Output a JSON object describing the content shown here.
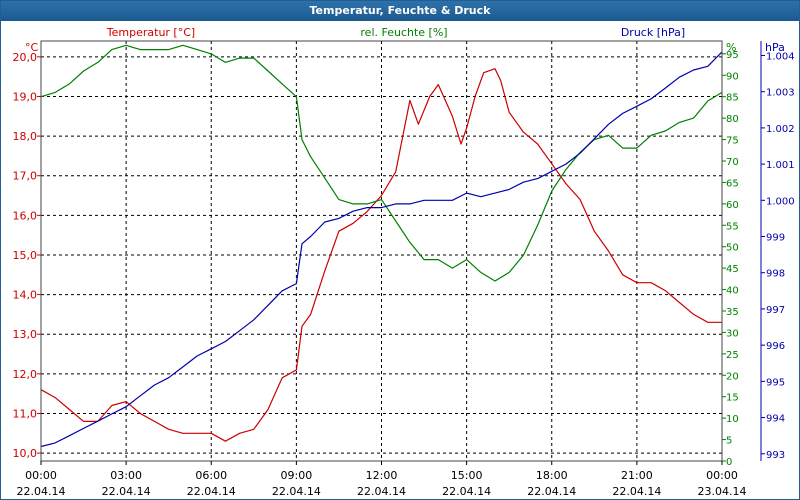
{
  "window": {
    "title": "Temperatur, Feuchte & Druck"
  },
  "colors": {
    "temperature": "#cc0000",
    "humidity": "#008000",
    "pressure": "#0000aa",
    "grid": "#000000",
    "title_bar": "#2066a0"
  },
  "chart_data": {
    "type": "line",
    "title": "Temperatur, Feuchte & Druck",
    "grid": true,
    "x": {
      "tick_times": [
        "00:00",
        "03:00",
        "06:00",
        "09:00",
        "12:00",
        "15:00",
        "18:00",
        "21:00",
        "00:00"
      ],
      "tick_dates": [
        "22.04.14",
        "22.04.14",
        "22.04.14",
        "22.04.14",
        "22.04.14",
        "22.04.14",
        "22.04.14",
        "22.04.14",
        "23.04.14"
      ],
      "range_hours": [
        0,
        24
      ]
    },
    "axes": {
      "left": {
        "label": "Temperatur [°C]",
        "unit": "°C",
        "range": [
          9.8,
          20.4
        ],
        "ticks": [
          "10,0",
          "11,0",
          "12,0",
          "13,0",
          "14,0",
          "15,0",
          "16,0",
          "17,0",
          "18,0",
          "19,0",
          "20,0"
        ]
      },
      "right1": {
        "label": "rel. Feuchte [%]",
        "unit": "%",
        "range": [
          0,
          98
        ],
        "ticks": [
          "0",
          "5",
          "10",
          "15",
          "20",
          "25",
          "30",
          "35",
          "40",
          "45",
          "50",
          "55",
          "60",
          "65",
          "70",
          "75",
          "80",
          "85",
          "90",
          "95"
        ]
      },
      "right2": {
        "label": "Druck [hPa]",
        "unit": "hPa",
        "range": [
          992.8,
          1004.4
        ],
        "ticks": [
          "993",
          "994",
          "995",
          "996",
          "997",
          "998",
          "999",
          "1.000",
          "1.001",
          "1.002",
          "1.003",
          "1.004"
        ]
      }
    },
    "series": [
      {
        "name": "Temperatur [°C]",
        "axis": "left",
        "color": "#cc0000",
        "x": [
          0,
          0.5,
          1,
          1.5,
          2,
          2.5,
          3,
          3.5,
          4,
          4.5,
          5,
          5.5,
          6,
          6.5,
          7,
          7.5,
          8,
          8.5,
          9,
          9.2,
          9.5,
          10,
          10.5,
          11,
          11.5,
          12,
          12.5,
          13,
          13.3,
          13.7,
          14,
          14.5,
          14.8,
          15,
          15.3,
          15.6,
          16,
          16.2,
          16.5,
          17,
          17.5,
          18,
          18.5,
          19,
          19.5,
          20,
          20.5,
          21,
          21.5,
          22,
          22.5,
          23,
          23.5,
          24
        ],
        "y": [
          11.6,
          11.4,
          11.1,
          10.8,
          10.8,
          11.2,
          11.3,
          11.0,
          10.8,
          10.6,
          10.5,
          10.5,
          10.5,
          10.3,
          10.5,
          10.6,
          11.1,
          11.9,
          12.1,
          13.2,
          13.5,
          14.6,
          15.6,
          15.8,
          16.1,
          16.5,
          17.1,
          18.9,
          18.3,
          19.0,
          19.3,
          18.5,
          17.8,
          18.2,
          19.0,
          19.6,
          19.7,
          19.4,
          18.6,
          18.1,
          17.8,
          17.3,
          16.8,
          16.4,
          15.6,
          15.1,
          14.5,
          14.3,
          14.3,
          14.1,
          13.8,
          13.5,
          13.3,
          13.3
        ]
      },
      {
        "name": "rel. Feuchte [%]",
        "axis": "right1",
        "color": "#008000",
        "x": [
          0,
          0.5,
          1,
          1.5,
          2,
          2.5,
          3,
          3.5,
          4,
          4.5,
          5,
          5.5,
          6,
          6.5,
          7,
          7.5,
          8,
          8.5,
          9,
          9.2,
          9.5,
          10,
          10.5,
          11,
          11.5,
          12,
          12.5,
          13,
          13.5,
          14,
          14.5,
          15,
          15.5,
          16,
          16.5,
          17,
          17.5,
          18,
          18.5,
          19,
          19.5,
          20,
          20.5,
          21,
          21.5,
          22,
          22.5,
          23,
          23.5,
          24
        ],
        "y": [
          85,
          86,
          88,
          91,
          93,
          96,
          97,
          96,
          96,
          96,
          97,
          96,
          95,
          93,
          94,
          94,
          91,
          88,
          85,
          75,
          71,
          66,
          61,
          60,
          60,
          61,
          56,
          51,
          47,
          47,
          45,
          47,
          44,
          42,
          44,
          48,
          55,
          63,
          68,
          72,
          75,
          76,
          73,
          73,
          76,
          77,
          79,
          80,
          84,
          86
        ]
      },
      {
        "name": "Druck [hPa]",
        "axis": "right2",
        "color": "#0000aa",
        "x": [
          0,
          0.5,
          1,
          1.5,
          2,
          2.5,
          3,
          3.5,
          4,
          4.5,
          5,
          5.5,
          6,
          6.5,
          7,
          7.5,
          8,
          8.5,
          9,
          9.2,
          9.5,
          10,
          10.5,
          11,
          11.5,
          12,
          12.5,
          13,
          13.5,
          14,
          14.5,
          15,
          15.5,
          16,
          16.5,
          17,
          17.5,
          18,
          18.5,
          19,
          19.5,
          20,
          20.5,
          21,
          21.5,
          22,
          22.5,
          23,
          23.5,
          24
        ],
        "y": [
          993.2,
          993.3,
          993.5,
          993.7,
          993.9,
          994.1,
          994.3,
          994.6,
          994.9,
          995.1,
          995.4,
          995.7,
          995.9,
          996.1,
          996.4,
          996.7,
          997.1,
          997.5,
          997.7,
          998.8,
          999.0,
          999.4,
          999.5,
          999.7,
          999.8,
          999.8,
          999.9,
          999.9,
          1000.0,
          1000.0,
          1000.0,
          1000.2,
          1000.1,
          1000.2,
          1000.3,
          1000.5,
          1000.6,
          1000.8,
          1001.0,
          1001.3,
          1001.7,
          1002.1,
          1002.4,
          1002.6,
          1002.8,
          1003.1,
          1003.4,
          1003.6,
          1003.7,
          1004.1
        ]
      }
    ]
  }
}
